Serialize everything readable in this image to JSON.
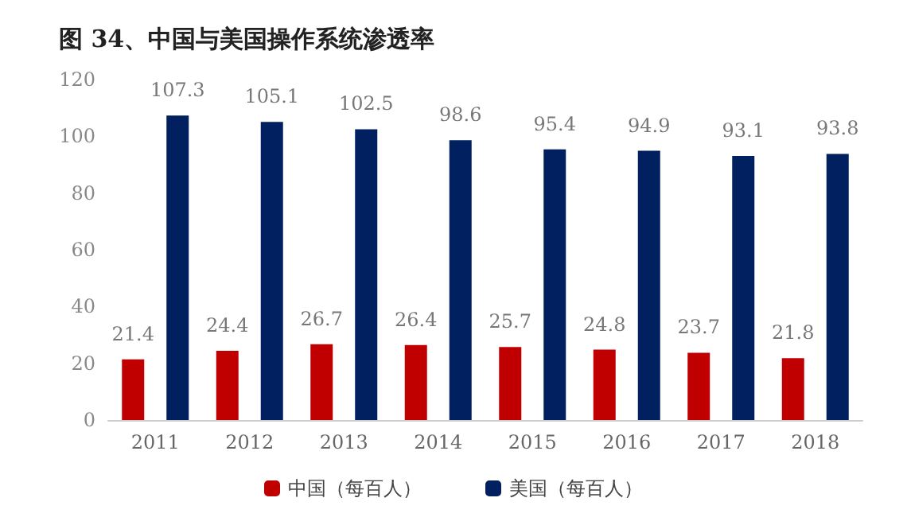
{
  "chart_data": {
    "type": "bar",
    "title": "图 34、中国与美国操作系统渗透率",
    "categories": [
      "2011",
      "2012",
      "2013",
      "2014",
      "2015",
      "2016",
      "2017",
      "2018"
    ],
    "series": [
      {
        "name": "中国（每百人）",
        "color": "#c00000",
        "values": [
          21.4,
          24.4,
          26.7,
          26.4,
          25.7,
          24.8,
          23.7,
          21.8
        ]
      },
      {
        "name": "美国（每百人）",
        "color": "#002060",
        "values": [
          107.3,
          105.1,
          102.5,
          98.6,
          95.4,
          94.9,
          93.1,
          93.8
        ]
      }
    ],
    "ylim": [
      0,
      120
    ],
    "yticks": [
      0,
      20,
      40,
      60,
      80,
      100,
      120
    ],
    "grid": false,
    "legend": "bottom",
    "data_labels": true
  }
}
